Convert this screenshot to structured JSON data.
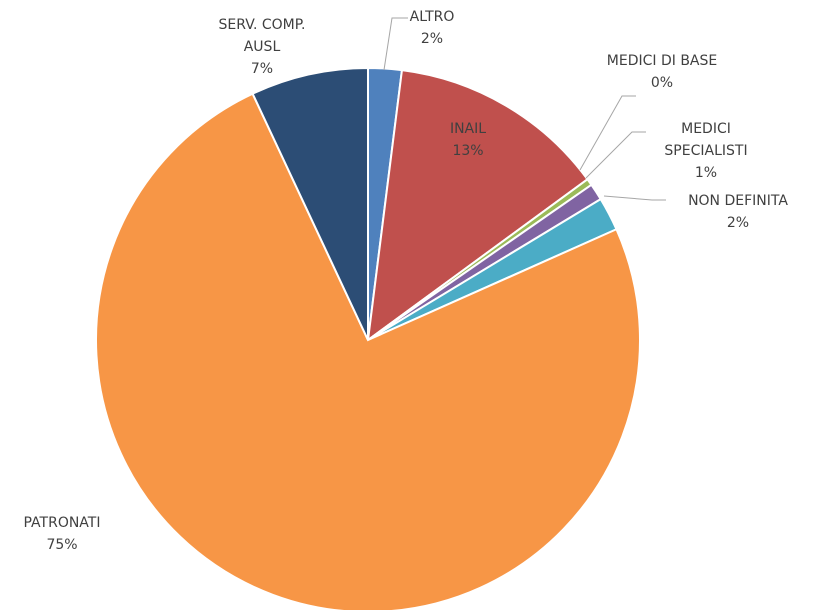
{
  "chart_data": {
    "type": "pie",
    "categories": [
      "ALTRO",
      "INAIL",
      "MEDICI DI BASE",
      "MEDICI SPECIALISTI",
      "NON DEFINITA",
      "PATRONATI",
      "SERV. COMP. AUSL"
    ],
    "values": [
      2,
      13,
      0.4,
      1,
      2,
      75,
      7
    ],
    "value_labels": [
      "2%",
      "13%",
      "0%",
      "1%",
      "2%",
      "75%",
      "7%"
    ],
    "colors": [
      "#4f81bd",
      "#c0504d",
      "#9bbb59",
      "#8064a2",
      "#4bacc6",
      "#f79646",
      "#2c4d75"
    ]
  }
}
